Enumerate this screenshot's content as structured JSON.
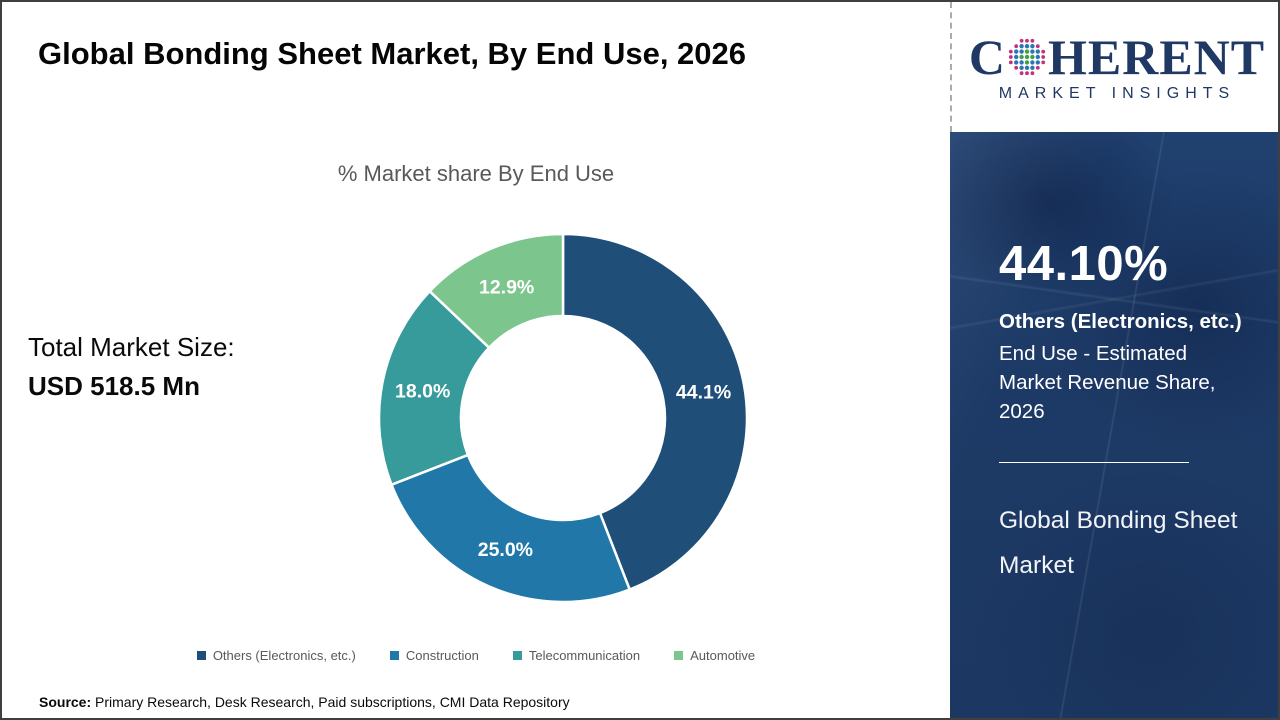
{
  "title": "Global Bonding Sheet Market, By End Use, 2026",
  "logo": {
    "letter_c": "C",
    "wordmark_rest": "HERENT",
    "tagline": "MARKET INSIGHTS",
    "navy": "#1f3864",
    "globe_colors": {
      "inner": "#43a047",
      "middle": "#2e75b6",
      "outer": "#c2327a"
    }
  },
  "total_market": {
    "label": "Total Market Size:",
    "value": "USD 518.5 Mn"
  },
  "chart_data": {
    "type": "pie",
    "subtype": "donut",
    "title": "% Market share By End Use",
    "categories": [
      "Others (Electronics, etc.)",
      "Construction",
      "Telecommunication",
      "Automotive"
    ],
    "values": [
      44.1,
      25.0,
      18.0,
      12.9
    ],
    "labels": [
      "44.1%",
      "25.0%",
      "18.0%",
      "12.9%"
    ],
    "colors": [
      "#1F4E79",
      "#2077A8",
      "#389B9B",
      "#7CC68E"
    ],
    "start_angle_deg": 0,
    "direction": "clockwise",
    "legend_position": "bottom",
    "label_color": "#ffffff"
  },
  "sidebar": {
    "stat": "44.10%",
    "stat_label": "Others (Electronics, etc.)",
    "stat_desc": "End Use - Estimated Market Revenue Share, 2026",
    "market_name": "Global Bonding Sheet Market",
    "background": "#1d3a66"
  },
  "source": {
    "label": "Source:",
    "text": " Primary Research, Desk Research, Paid subscriptions, CMI Data Repository"
  }
}
